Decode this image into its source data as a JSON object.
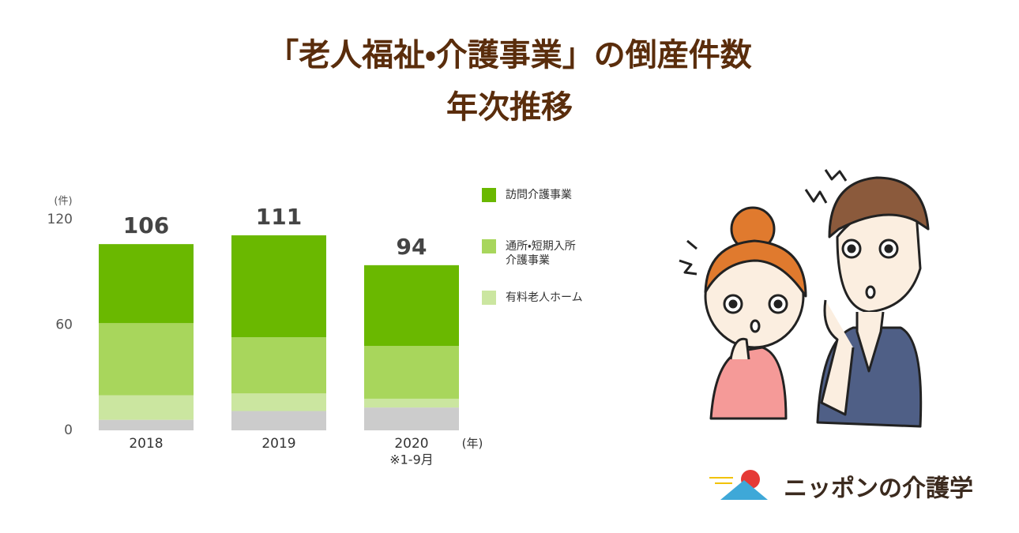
{
  "chart_data": {
    "type": "stacked_bar",
    "title": [
      "「老人福祉・介護事業」の倒産件数",
      "年次推移"
    ],
    "y_label": "(件)",
    "x_label": "(年)",
    "categories": [
      "2018",
      "2019",
      "2020"
    ],
    "x_note": "※1-9月",
    "totals": [
      106,
      111,
      94
    ],
    "series": [
      {
        "name": null,
        "color": "#cccccc",
        "values": [
          6,
          11,
          13
        ]
      },
      {
        "name": "有料老人ホーム",
        "color": "#cbe6a0",
        "values": [
          14,
          10,
          5
        ]
      },
      {
        "name": "通所・短期入所\n介護事業",
        "color": "#a8d65c",
        "values": [
          41,
          32,
          30
        ]
      },
      {
        "name": "訪問介護事業",
        "color": "#6ab800",
        "values": [
          45,
          58,
          46
        ]
      }
    ],
    "ylim": [
      0,
      120
    ],
    "yticks": [
      0,
      60,
      120
    ],
    "grid": false
  },
  "brand": "ニッポンの介護学"
}
